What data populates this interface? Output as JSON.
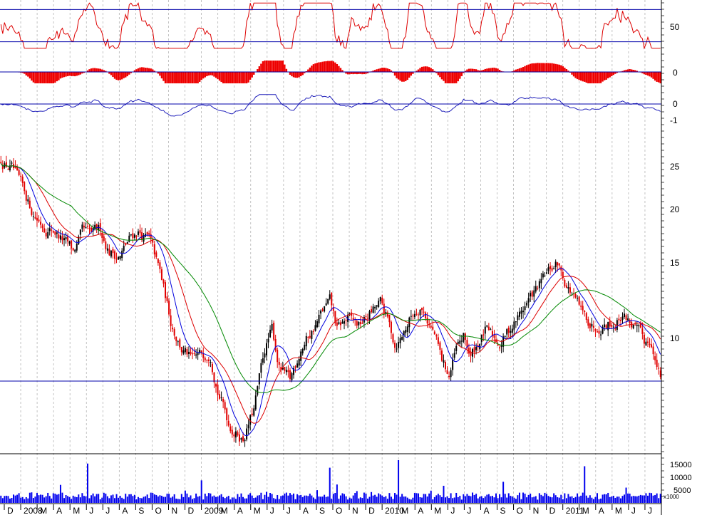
{
  "chart_data": {
    "type": "candlestick",
    "colors": {
      "background": "#ffffff",
      "frame": "#000000",
      "guide": "#0000aa",
      "grid": "#b4b4b4",
      "candle_up": "#000000",
      "candle_down": "#e00000",
      "ma_short": "#0000dd",
      "ma_mid": "#dd0000",
      "ma_long": "#008800",
      "oscillator": "#dd0000",
      "histogram": "#ee0000",
      "momentum": "#2222bb",
      "volume": "#0000ee"
    },
    "x_labels": [
      "D",
      "2008",
      "M",
      "A",
      "M",
      "J",
      "J",
      "A",
      "S",
      "O",
      "N",
      "D",
      "2009",
      "M",
      "A",
      "M",
      "J",
      "J",
      "A",
      "S",
      "O",
      "N",
      "D",
      "2010",
      "M",
      "A",
      "M",
      "J",
      "J",
      "A",
      "S",
      "O",
      "N",
      "D",
      "2011",
      "M",
      "A",
      "M",
      "J",
      "J"
    ],
    "price_panel": {
      "scale": "log",
      "y_ticks": [
        10,
        15,
        20,
        25
      ],
      "ylim": [
        6.2,
        28
      ],
      "guide_line": 8.7,
      "anchors": [
        [
          0,
          24.5
        ],
        [
          6,
          23.5
        ],
        [
          12,
          21
        ],
        [
          18,
          19
        ],
        [
          24,
          18
        ],
        [
          30,
          17.6
        ],
        [
          36,
          16.5
        ],
        [
          40,
          15.8
        ],
        [
          45,
          17.2
        ],
        [
          50,
          17.0
        ],
        [
          55,
          17.5
        ],
        [
          60,
          16.0
        ],
        [
          66,
          15.6
        ],
        [
          72,
          17.0
        ],
        [
          76,
          17.5
        ],
        [
          82,
          16.8
        ],
        [
          88,
          14.3
        ],
        [
          94,
          11.5
        ],
        [
          100,
          10.2
        ],
        [
          106,
          9.5
        ],
        [
          112,
          9.8
        ],
        [
          116,
          10.1
        ],
        [
          120,
          8.5
        ],
        [
          126,
          7.2
        ],
        [
          130,
          6.9
        ],
        [
          134,
          6.7
        ],
        [
          140,
          7.6
        ],
        [
          146,
          10.0
        ],
        [
          150,
          11.0
        ],
        [
          154,
          9.3
        ],
        [
          160,
          8.6
        ],
        [
          166,
          10.2
        ],
        [
          172,
          11.0
        ],
        [
          178,
          12.0
        ],
        [
          182,
          12.5
        ],
        [
          186,
          11.0
        ],
        [
          192,
          11.6
        ],
        [
          198,
          11.2
        ],
        [
          204,
          11.9
        ],
        [
          210,
          12.4
        ],
        [
          214,
          11.5
        ],
        [
          218,
          10.3
        ],
        [
          222,
          10.8
        ],
        [
          226,
          11.6
        ],
        [
          232,
          12.5
        ],
        [
          236,
          11.7
        ],
        [
          240,
          10.8
        ],
        [
          244,
          9.5
        ],
        [
          248,
          8.9
        ],
        [
          252,
          10.0
        ],
        [
          256,
          10.6
        ],
        [
          260,
          9.7
        ],
        [
          264,
          10.4
        ],
        [
          268,
          11.0
        ],
        [
          272,
          10.6
        ],
        [
          276,
          10.4
        ],
        [
          280,
          10.9
        ],
        [
          286,
          11.7
        ],
        [
          292,
          12.7
        ],
        [
          298,
          13.5
        ],
        [
          304,
          14.5
        ],
        [
          308,
          15.0
        ],
        [
          312,
          13.9
        ],
        [
          316,
          13.1
        ],
        [
          322,
          11.7
        ],
        [
          328,
          11.3
        ],
        [
          334,
          11.6
        ],
        [
          340,
          11.5
        ],
        [
          344,
          12.0
        ],
        [
          350,
          11.3
        ],
        [
          356,
          10.3
        ],
        [
          360,
          10.6
        ],
        [
          362,
          9.6
        ],
        [
          365,
          8.8
        ]
      ]
    },
    "oscillator_panel": {
      "y_ticks": [
        50
      ],
      "upper_line": 70,
      "lower_line": 30,
      "ylim": [
        20,
        80
      ]
    },
    "histogram_panel": {
      "y_ticks": [
        0
      ]
    },
    "momentum_panel": {
      "y_ticks": [
        0,
        -1
      ]
    },
    "volume_panel": {
      "y_ticks": [
        5000,
        10000,
        15000
      ],
      "unit": "x1000",
      "ylim": [
        0,
        17000
      ]
    }
  }
}
